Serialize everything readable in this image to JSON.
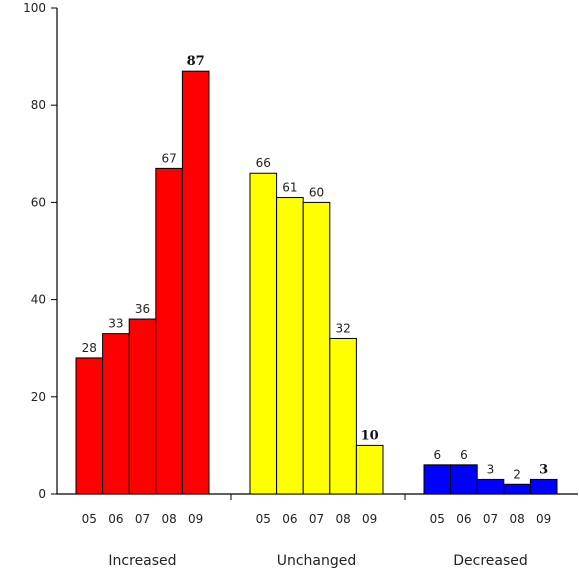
{
  "chart_data": {
    "type": "bar",
    "title": "",
    "xlabel": "",
    "ylabel": "",
    "ylim": [
      0,
      100
    ],
    "yticks": [
      0,
      20,
      40,
      60,
      80,
      100
    ],
    "years": [
      "05",
      "06",
      "07",
      "08",
      "09"
    ],
    "groups": [
      {
        "label": "Increased",
        "color": "#ff0000",
        "values": [
          28,
          33,
          36,
          67,
          87
        ],
        "value_labels": [
          "28",
          "33",
          "36",
          "67",
          "87"
        ]
      },
      {
        "label": "Unchanged",
        "color": "#ffff00",
        "values": [
          66,
          61,
          60,
          32,
          10
        ],
        "value_labels": [
          "66",
          "61",
          "60",
          "32",
          "10"
        ]
      },
      {
        "label": "Decreased",
        "color": "#0000ff",
        "values": [
          6,
          6,
          3,
          2,
          3
        ],
        "value_labels": [
          "6",
          "6",
          "3",
          "2",
          "3"
        ]
      }
    ]
  }
}
